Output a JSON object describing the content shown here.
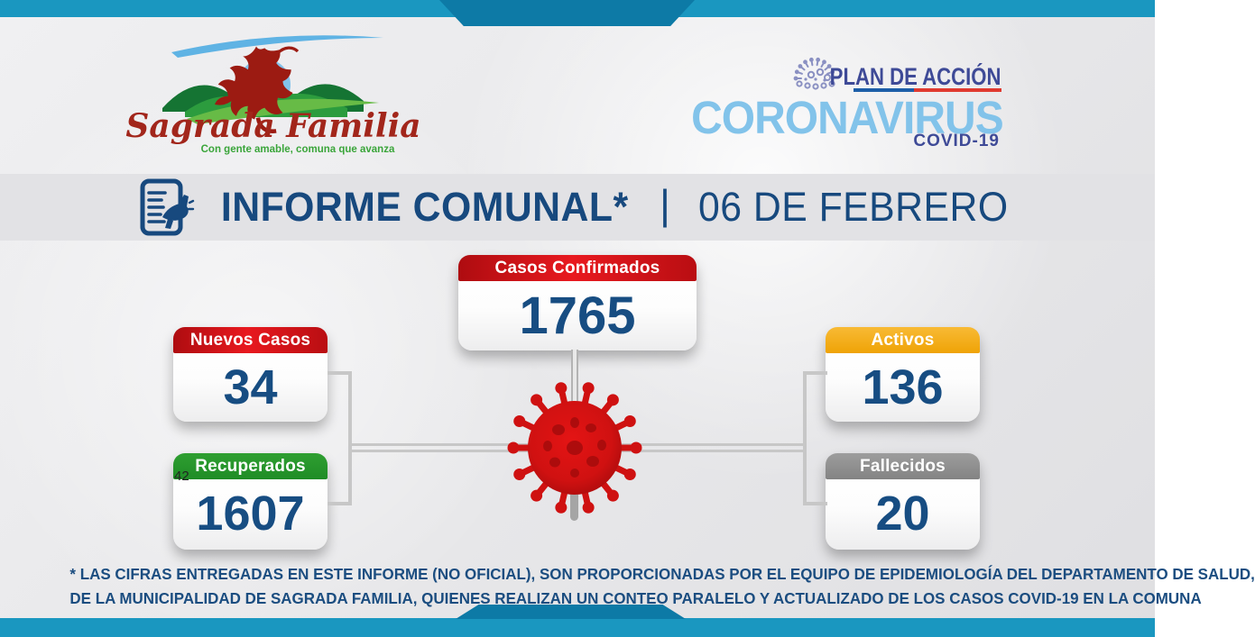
{
  "logo": {
    "name": "Sagrada Familia",
    "tagline": "Con gente amable, comuna que avanza"
  },
  "plan": {
    "kicker": "PLAN DE ACCIÓN",
    "title": "CORONAVIRUS",
    "subtitle": "COVID-19"
  },
  "header": {
    "title": "INFORME COMUNAL*",
    "separator": "|",
    "date": "06 DE FEBRERO"
  },
  "stats": {
    "confirmados": {
      "label": "Casos Confirmados",
      "value": "1765",
      "header_color": "#d31117"
    },
    "nuevos": {
      "label": "Nuevos Casos",
      "value": "34",
      "header_color": "#d31117"
    },
    "activos": {
      "label": "Activos",
      "value": "136",
      "header_color": "#f3a816"
    },
    "recuperados": {
      "label": "Recuperados",
      "value": "1607",
      "header_color": "#28962c"
    },
    "fallecidos": {
      "label": "Fallecidos",
      "value": "20",
      "header_color": "#8f8f8f"
    }
  },
  "artifact": {
    "text": "42"
  },
  "footer": {
    "line1": "* LAS CIFRAS ENTREGADAS EN ESTE INFORME (NO  OFICIAL),  SON PROPORCIONADAS POR EL EQUIPO DE EPIDEMIOLOGÍA DEL DEPARTAMENTO DE SALUD,",
    "line2": "DE LA MUNICIPALIDAD DE SAGRADA FAMILIA, QUIENES REALIZAN UN CONTEO PARALELO Y ACTUALIZADO DE LOS CASOS COVID-19 EN LA COMUNA"
  },
  "colors": {
    "band_teal": "#1a97c0",
    "band_dark": "#0d7aa6",
    "navy": "#17497e",
    "number_navy": "#174d82",
    "coronavirus_blue": "#82c3ea",
    "plan_indigo": "#3e4a97",
    "rule_blue": "#1c5ea8",
    "rule_red": "#e03a30",
    "virus_red": "#cf1111",
    "footer_text": "#1b4d80"
  }
}
